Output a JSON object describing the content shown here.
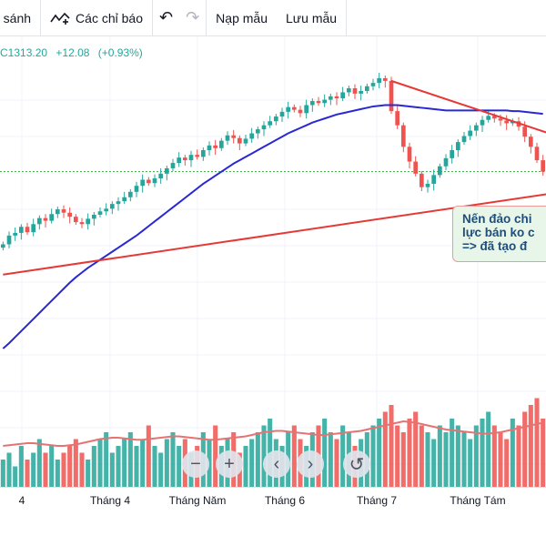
{
  "toolbar": {
    "compare_label": "o sánh",
    "indicators_label": "Các chỉ báo",
    "templates_label": "Nạp mẫu",
    "save_label": "Lưu mẫu",
    "undo_icon": "undo-icon",
    "redo_icon": "redo-icon",
    "indicator_icon": "indicators-icon"
  },
  "quote": {
    "price": "C1313.20",
    "change": "+12.08",
    "change_pct": "(+0.93%)",
    "color": "#26a69a"
  },
  "annotation": {
    "line1": "Nến đảo chi",
    "line2": "lực bán ko c",
    "line3": "=> đã tạo đ"
  },
  "nav_buttons": [
    {
      "icon": "minus-icon",
      "label": "−"
    },
    {
      "icon": "plus-icon",
      "label": "+"
    },
    {
      "icon": "chevron-left-icon",
      "label": "‹"
    },
    {
      "icon": "chevron-right-icon",
      "label": "›"
    },
    {
      "icon": "reset-icon",
      "label": "↺"
    }
  ],
  "chart_data": {
    "type": "candlestick",
    "x_ticks": [
      "4",
      "Tháng 4",
      "Tháng Năm",
      "Tháng 6",
      "Tháng 7",
      "Tháng Tám"
    ],
    "ylim": [
      1000,
      1460
    ],
    "grid": true,
    "colors": {
      "up": "#26a69a",
      "down": "#ef5350",
      "ma": "#2929d4",
      "trendline": "#e53935",
      "volume_ma": "#e57373",
      "price_line": "#4caf50"
    },
    "price_line": 1313.2,
    "close": [
      1205,
      1218,
      1222,
      1231,
      1223,
      1235,
      1244,
      1240,
      1250,
      1257,
      1252,
      1246,
      1238,
      1235,
      1243,
      1249,
      1254,
      1258,
      1265,
      1269,
      1275,
      1283,
      1292,
      1301,
      1296,
      1303,
      1310,
      1318,
      1326,
      1334,
      1330,
      1338,
      1335,
      1345,
      1352,
      1348,
      1359,
      1367,
      1363,
      1355,
      1362,
      1370,
      1376,
      1382,
      1388,
      1395,
      1402,
      1409,
      1405,
      1400,
      1412,
      1418,
      1415,
      1420,
      1425,
      1422,
      1431,
      1437,
      1429,
      1433,
      1440,
      1445,
      1452,
      1448,
      1403,
      1382,
      1350,
      1328,
      1310,
      1290,
      1295,
      1308,
      1321,
      1333,
      1345,
      1357,
      1366,
      1374,
      1382,
      1390,
      1396,
      1392,
      1389,
      1385,
      1388,
      1380,
      1365,
      1350,
      1330,
      1313
    ],
    "moving_average": [
      1050,
      1058,
      1067,
      1076,
      1085,
      1094,
      1103,
      1112,
      1121,
      1130,
      1139,
      1148,
      1156,
      1163,
      1170,
      1176,
      1182,
      1188,
      1194,
      1200,
      1206,
      1212,
      1218,
      1225,
      1232,
      1239,
      1246,
      1253,
      1260,
      1267,
      1274,
      1281,
      1288,
      1295,
      1301,
      1307,
      1313,
      1319,
      1325,
      1330,
      1335,
      1340,
      1345,
      1350,
      1355,
      1360,
      1365,
      1370,
      1374,
      1378,
      1382,
      1386,
      1389,
      1392,
      1395,
      1398,
      1400,
      1402,
      1404,
      1406,
      1408,
      1410,
      1411,
      1412,
      1412,
      1412,
      1411,
      1410,
      1409,
      1408,
      1407,
      1406,
      1405,
      1404,
      1404,
      1404,
      1404,
      1404,
      1404,
      1404,
      1404,
      1404,
      1404,
      1404,
      1403,
      1403,
      1402,
      1401,
      1400,
      1399
    ],
    "trendlines": [
      {
        "from": [
          0,
          1160
        ],
        "to": [
          89,
          1280
        ]
      },
      {
        "from": [
          64,
          1448
        ],
        "to": [
          89,
          1370
        ]
      }
    ],
    "volume": [
      4,
      5,
      3,
      6,
      4,
      5,
      7,
      5,
      6,
      4,
      5,
      6,
      7,
      5,
      4,
      6,
      7,
      8,
      5,
      6,
      7,
      8,
      6,
      7,
      9,
      6,
      5,
      7,
      8,
      6,
      7,
      5,
      6,
      8,
      7,
      9,
      6,
      7,
      8,
      5,
      6,
      7,
      8,
      9,
      10,
      7,
      6,
      8,
      9,
      7,
      6,
      8,
      9,
      10,
      8,
      7,
      9,
      8,
      6,
      7,
      8,
      9,
      10,
      11,
      12,
      9,
      8,
      10,
      11,
      9,
      8,
      7,
      9,
      8,
      10,
      9,
      8,
      7,
      9,
      10,
      11,
      9,
      8,
      7,
      10,
      9,
      11,
      12,
      13,
      10
    ],
    "volume_ma": [
      6.0,
      6.1,
      6.2,
      6.3,
      6.4,
      6.4,
      6.3,
      6.2,
      6.1,
      6.0,
      6.0,
      6.1,
      6.2,
      6.4,
      6.6,
      6.8,
      7.0,
      7.1,
      7.2,
      7.2,
      7.1,
      7.0,
      6.9,
      6.9,
      7.0,
      7.1,
      7.2,
      7.3,
      7.4,
      7.4,
      7.3,
      7.2,
      7.1,
      7.0,
      6.9,
      6.9,
      7.0,
      7.1,
      7.2,
      7.3,
      7.4,
      7.6,
      7.8,
      8.0,
      8.1,
      8.2,
      8.2,
      8.1,
      8.0,
      7.9,
      7.8,
      7.7,
      7.6,
      7.6,
      7.7,
      7.8,
      7.9,
      8.0,
      8.1,
      8.2,
      8.4,
      8.6,
      8.8,
      9.0,
      9.2,
      9.4,
      9.6,
      9.5,
      9.4,
      9.2,
      9.0,
      8.8,
      8.6,
      8.4,
      8.3,
      8.2,
      8.1,
      8.0,
      7.9,
      7.8,
      7.8,
      7.9,
      8.0,
      8.2,
      8.4,
      8.6,
      8.8,
      9.0,
      9.2,
      9.4
    ]
  }
}
